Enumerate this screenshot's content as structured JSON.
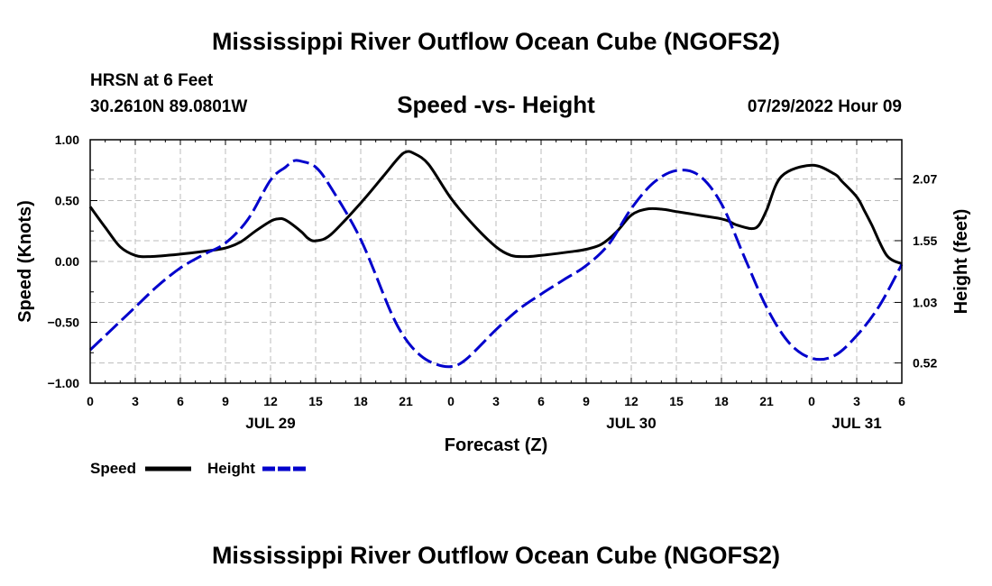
{
  "header": {
    "title": "Mississippi River Outflow Ocean Cube (NGOFS2)",
    "station": "HRSN at 6 Feet",
    "coords": "30.2610N  89.0801W",
    "subtitle": "Speed -vs- Height",
    "datetime": "07/29/2022 Hour 09"
  },
  "footer": {
    "title": "Mississippi River Outflow Ocean Cube (NGOFS2)"
  },
  "legend": {
    "items": [
      {
        "label": "Speed",
        "color": "#000000",
        "style": "solid"
      },
      {
        "label": "Height",
        "color": "#0000cc",
        "style": "dashed"
      }
    ]
  },
  "chart_data": {
    "type": "line",
    "title": "Speed -vs- Height",
    "xlabel": "Forecast (Z)",
    "ylabel": "Speed (Knots)",
    "y2label": "Height (feet)",
    "xlim": [
      0,
      54
    ],
    "ylim": [
      -1.0,
      1.0
    ],
    "y2lim": [
      0.35,
      2.4
    ],
    "grid": true,
    "x_ticks": [
      0,
      3,
      6,
      9,
      12,
      15,
      18,
      21,
      24,
      27,
      30,
      33,
      36,
      39,
      42,
      45,
      48,
      51,
      54
    ],
    "x_tick_labels": [
      "0",
      "3",
      "6",
      "9",
      "12",
      "15",
      "18",
      "21",
      "0",
      "3",
      "6",
      "9",
      "12",
      "15",
      "18",
      "21",
      "0",
      "3",
      "6"
    ],
    "y_ticks": [
      -1.0,
      -0.5,
      0.0,
      0.5,
      1.0
    ],
    "y_tick_labels": [
      "−1.00",
      "−0.50",
      "0.00",
      "0.50",
      "1.00"
    ],
    "y2_ticks": [
      0.52,
      1.03,
      1.55,
      2.07
    ],
    "y2_tick_labels": [
      "0.52",
      "1.03",
      "1.55",
      "2.07"
    ],
    "date_labels": [
      {
        "x": 12,
        "label": "JUL 29"
      },
      {
        "x": 36,
        "label": "JUL 30"
      },
      {
        "x": 51,
        "label": "JUL 31"
      }
    ],
    "series": [
      {
        "name": "Speed",
        "axis": "left",
        "color": "#000000",
        "style": "solid",
        "x": [
          0,
          1,
          2,
          3,
          4,
          6,
          8,
          9,
          10,
          11,
          12,
          12.5,
          13,
          14,
          14.5,
          15,
          16,
          18,
          19.5,
          20.5,
          21,
          21.5,
          22.5,
          24,
          25.5,
          27,
          28,
          29,
          30,
          32,
          33,
          34,
          35,
          36,
          37,
          38,
          39,
          40,
          41,
          42,
          42.5,
          43,
          44,
          44.5,
          45,
          46,
          48,
          49.5,
          50,
          51,
          51.5,
          52,
          53,
          54
        ],
        "values": [
          0.45,
          0.28,
          0.12,
          0.05,
          0.04,
          0.06,
          0.09,
          0.11,
          0.16,
          0.25,
          0.33,
          0.35,
          0.34,
          0.25,
          0.19,
          0.17,
          0.22,
          0.48,
          0.7,
          0.85,
          0.9,
          0.89,
          0.8,
          0.52,
          0.3,
          0.12,
          0.05,
          0.04,
          0.05,
          0.08,
          0.1,
          0.14,
          0.24,
          0.38,
          0.43,
          0.43,
          0.41,
          0.39,
          0.37,
          0.35,
          0.33,
          0.3,
          0.27,
          0.3,
          0.42,
          0.7,
          0.79,
          0.72,
          0.66,
          0.53,
          0.42,
          0.3,
          0.05,
          -0.02
        ]
      },
      {
        "name": "Height",
        "axis": "right",
        "color": "#0000cc",
        "style": "dashed",
        "x": [
          0,
          1.5,
          3,
          4.5,
          6,
          7.5,
          9,
          10.5,
          12,
          13,
          13.5,
          14,
          15,
          16,
          18,
          20,
          21,
          22,
          23,
          24,
          25,
          27,
          28.5,
          30,
          31.5,
          33,
          34.5,
          36,
          37.5,
          39,
          40.5,
          42,
          43.5,
          45,
          46.5,
          48,
          49.5,
          51,
          52.5,
          54
        ],
        "values": [
          0.63,
          0.81,
          0.99,
          1.17,
          1.32,
          1.43,
          1.53,
          1.73,
          2.06,
          2.17,
          2.22,
          2.22,
          2.17,
          2.0,
          1.56,
          0.95,
          0.72,
          0.58,
          0.51,
          0.49,
          0.55,
          0.8,
          0.97,
          1.1,
          1.22,
          1.34,
          1.52,
          1.82,
          2.04,
          2.14,
          2.1,
          1.86,
          1.42,
          0.99,
          0.69,
          0.56,
          0.58,
          0.75,
          1.0,
          1.35
        ]
      }
    ]
  }
}
